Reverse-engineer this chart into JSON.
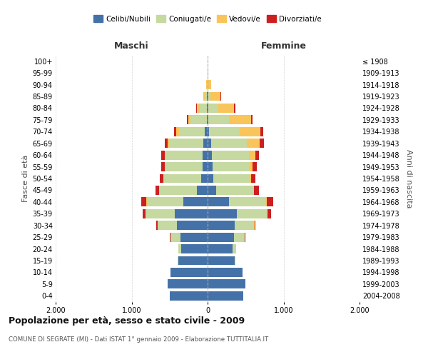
{
  "age_groups": [
    "100+",
    "95-99",
    "90-94",
    "85-89",
    "80-84",
    "75-79",
    "70-74",
    "65-69",
    "60-64",
    "55-59",
    "50-54",
    "45-49",
    "40-44",
    "35-39",
    "30-34",
    "25-29",
    "20-24",
    "15-19",
    "10-14",
    "5-9",
    "0-4"
  ],
  "birth_years": [
    "≤ 1908",
    "1909-1913",
    "1914-1918",
    "1919-1923",
    "1924-1928",
    "1929-1933",
    "1934-1938",
    "1939-1943",
    "1944-1948",
    "1949-1953",
    "1954-1958",
    "1959-1963",
    "1964-1968",
    "1969-1973",
    "1974-1978",
    "1979-1983",
    "1984-1988",
    "1989-1993",
    "1994-1998",
    "1999-2003",
    "2004-2008"
  ],
  "maschi": {
    "celibi": [
      2,
      2,
      3,
      5,
      5,
      12,
      35,
      55,
      65,
      70,
      85,
      140,
      320,
      430,
      400,
      360,
      345,
      385,
      490,
      530,
      500
    ],
    "coniugati": [
      0,
      0,
      8,
      30,
      100,
      210,
      340,
      450,
      490,
      490,
      490,
      490,
      480,
      385,
      255,
      130,
      40,
      10,
      0,
      0,
      0
    ],
    "vedovi": [
      0,
      0,
      5,
      25,
      40,
      35,
      35,
      25,
      12,
      8,
      5,
      5,
      5,
      5,
      5,
      0,
      0,
      0,
      0,
      0,
      0
    ],
    "divorziati": [
      0,
      0,
      0,
      0,
      8,
      12,
      35,
      35,
      45,
      45,
      45,
      55,
      65,
      32,
      12,
      5,
      0,
      0,
      0,
      0,
      0
    ]
  },
  "femmine": {
    "nubili": [
      2,
      2,
      3,
      5,
      5,
      12,
      22,
      50,
      52,
      62,
      72,
      115,
      280,
      385,
      355,
      345,
      325,
      355,
      460,
      500,
      470
    ],
    "coniugate": [
      0,
      0,
      5,
      35,
      135,
      270,
      400,
      470,
      490,
      490,
      480,
      485,
      490,
      400,
      260,
      145,
      50,
      10,
      0,
      0,
      0
    ],
    "vedove": [
      0,
      8,
      35,
      130,
      210,
      290,
      270,
      170,
      85,
      42,
      22,
      12,
      5,
      5,
      5,
      0,
      0,
      0,
      0,
      0,
      0
    ],
    "divorziate": [
      0,
      0,
      0,
      5,
      12,
      22,
      42,
      52,
      52,
      52,
      52,
      68,
      88,
      48,
      12,
      5,
      0,
      0,
      0,
      0,
      0
    ]
  },
  "colors": {
    "celibi": "#4472a8",
    "coniugati": "#c5d9a0",
    "vedovi": "#f9c55a",
    "divorziati": "#cc2020"
  },
  "title": "Popolazione per età, sesso e stato civile - 2009",
  "subtitle": "COMUNE DI SEGRATE (MI) - Dati ISTAT 1° gennaio 2009 - Elaborazione TUTTITALIA.IT",
  "label_maschi": "Maschi",
  "label_femmine": "Femmine",
  "ylabel_left": "Fasce di età",
  "ylabel_right": "Anni di nascita",
  "xlim": 2000,
  "legend_labels": [
    "Celibi/Nubili",
    "Coniugati/e",
    "Vedovi/e",
    "Divorziati/e"
  ],
  "background_color": "#ffffff",
  "grid_color": "#cccccc"
}
